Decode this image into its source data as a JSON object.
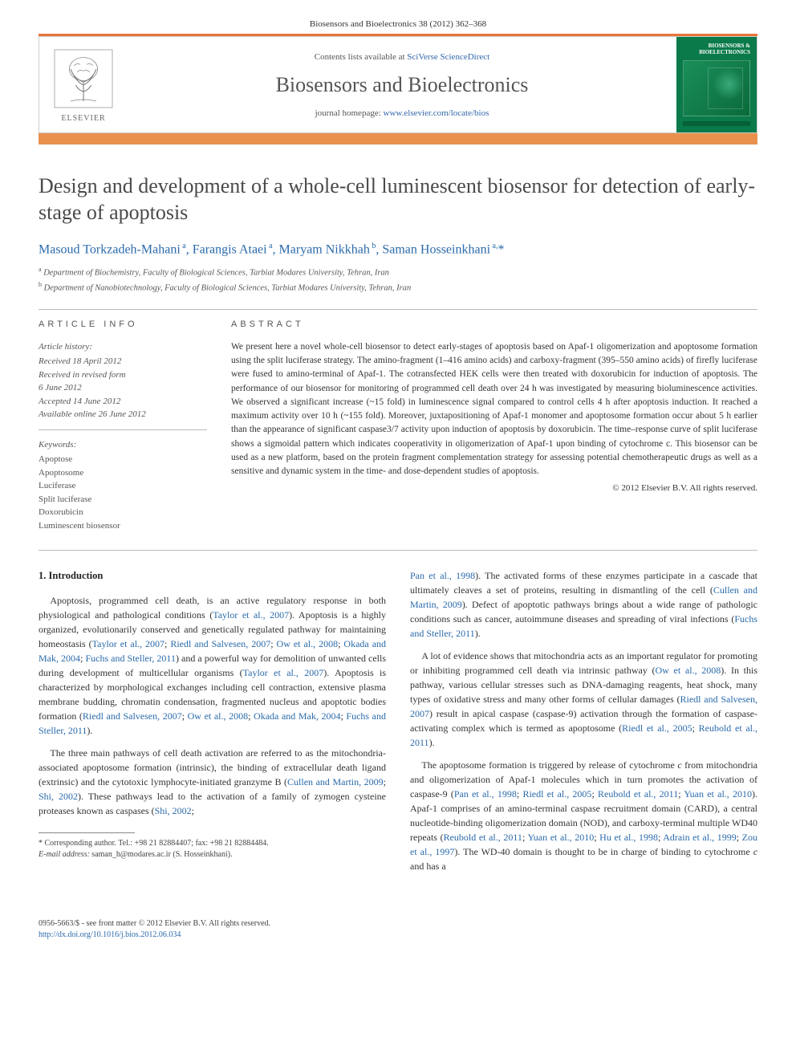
{
  "page_header": "Biosensors and Bioelectronics 38 (2012) 362–368",
  "banner": {
    "contents_prefix": "Contents lists available at ",
    "contents_link": "SciVerse ScienceDirect",
    "journal": "Biosensors and Bioelectronics",
    "homepage_prefix": "journal homepage: ",
    "homepage_link": "www.elsevier.com/locate/bios",
    "publisher": "ELSEVIER",
    "cover_title": "BIOSENSORS & BIOELECTRONICS"
  },
  "title": "Design and development of a whole-cell luminescent biosensor for detection of early-stage of apoptosis",
  "authors_html": "Masoud Torkzadeh-Mahani<sup> a</sup>, Farangis Ataei<sup> a</sup>, Maryam Nikkhah<sup> b</sup>, Saman Hosseinkhani<sup> a,</sup><span class='star'>*</span>",
  "affiliations": [
    {
      "sup": "a",
      "text": "Department of Biochemistry, Faculty of Biological Sciences, Tarbiat Modares University, Tehran, Iran"
    },
    {
      "sup": "b",
      "text": "Department of Nanobiotechnology, Faculty of Biological Sciences, Tarbiat Modares University, Tehran, Iran"
    }
  ],
  "info": {
    "heading": "ARTICLE INFO",
    "history_label": "Article history:",
    "history": [
      "Received 18 April 2012",
      "Received in revised form",
      "6 June 2012",
      "Accepted 14 June 2012",
      "Available online 26 June 2012"
    ],
    "keywords_label": "Keywords:",
    "keywords": [
      "Apoptose",
      "Apoptosome",
      "Luciferase",
      "Split luciferase",
      "Doxorubicin",
      "Luminescent biosensor"
    ]
  },
  "abstract": {
    "heading": "ABSTRACT",
    "text": "We present here a novel whole-cell biosensor to detect early-stages of apoptosis based on Apaf-1 oligomerization and apoptosome formation using the split luciferase strategy. The amino-fragment (1–416 amino acids) and carboxy-fragment (395–550 amino acids) of firefly luciferase were fused to amino-terminal of Apaf-1. The cotransfected HEK cells were then treated with doxorubicin for induction of apoptosis. The performance of our biosensor for monitoring of programmed cell death over 24 h was investigated by measuring bioluminescence activities. We observed a significant increase (~15 fold) in luminescence signal compared to control cells 4 h after apoptosis induction. It reached a maximum activity over 10 h (~155 fold). Moreover, juxtapositioning of Apaf-1 monomer and apoptosome formation occur about 5 h earlier than the appearance of significant caspase3/7 activity upon induction of apoptosis by doxorubicin. The time–response curve of split luciferase shows a sigmoidal pattern which indicates cooperativity in oligomerization of Apaf-1 upon binding of cytochrome c. This biosensor can be used as a new platform, based on the protein fragment complementation strategy for assessing potential chemotherapeutic drugs as well as a sensitive and dynamic system in the time- and dose-dependent studies of apoptosis.",
    "copyright": "© 2012 Elsevier B.V. All rights reserved."
  },
  "body": {
    "section_heading": "1.  Introduction",
    "left": [
      "Apoptosis, programmed cell death, is an active regulatory response in both physiological and pathological conditions (<span class='ref'>Taylor et al., 2007</span>). Apoptosis is a highly organized, evolutionarily conserved and genetically regulated pathway for maintaining homeostasis (<span class='ref'>Taylor et al., 2007</span>; <span class='ref'>Riedl and Salvesen, 2007</span>; <span class='ref'>Ow et al., 2008</span>; <span class='ref'>Okada and Mak, 2004</span>; <span class='ref'>Fuchs and Steller, 2011</span>) and a powerful way for demolition of unwanted cells during development of multicellular organisms (<span class='ref'>Taylor et al., 2007</span>). Apoptosis is characterized by morphological exchanges including cell contraction, extensive plasma membrane budding, chromatin condensation, fragmented nucleus and apoptotic bodies formation (<span class='ref'>Riedl and Salvesen, 2007</span>; <span class='ref'>Ow et al., 2008</span>; <span class='ref'>Okada and Mak, 2004</span>; <span class='ref'>Fuchs and Steller, 2011</span>).",
      "The three main pathways of cell death activation are referred to as the mitochondria-associated apoptosome formation (intrinsic), the binding of extracellular death ligand (extrinsic) and the cytotoxic lymphocyte-initiated granzyme B (<span class='ref'>Cullen and Martin, 2009</span>; <span class='ref'>Shi, 2002</span>). These pathways lead to the activation of a family of zymogen cysteine proteases known as caspases (<span class='ref'>Shi, 2002</span>;"
    ],
    "right": [
      "<span class='ref'>Pan et al., 1998</span>). The activated forms of these enzymes participate in a cascade that ultimately cleaves a set of proteins, resulting in dismantling of the cell (<span class='ref'>Cullen and Martin, 2009</span>). Defect of apoptotic pathways brings about a wide range of pathologic conditions such as cancer, autoimmune diseases and spreading of viral infections (<span class='ref'>Fuchs and Steller, 2011</span>).",
      "A lot of evidence shows that mitochondria acts as an important regulator for promoting or inhibiting programmed cell death via intrinsic pathway (<span class='ref'>Ow et al., 2008</span>). In this pathway, various cellular stresses such as DNA-damaging reagents, heat shock, many types of oxidative stress and many other forms of cellular damages (<span class='ref'>Riedl and Salvesen, 2007</span>) result in apical caspase (caspase-9) activation through the formation of caspase-activating complex which is termed as apoptosome (<span class='ref'>Riedl et al., 2005</span>; <span class='ref'>Reubold et al., 2011</span>).",
      "The apoptosome formation is triggered by release of cytochrome <em class='species'>c</em> from mitochondria and oligomerization of Apaf-1 molecules which in turn promotes the activation of caspase-9 (<span class='ref'>Pan et al., 1998</span>; <span class='ref'>Riedl et al., 2005</span>; <span class='ref'>Reubold et al., 2011</span>; <span class='ref'>Yuan et al., 2010</span>). Apaf-1 comprises of an amino-terminal caspase recruitment domain (CARD), a central nucleotide-binding oligomerization domain (NOD), and carboxy-terminal multiple WD40 repeats (<span class='ref'>Reubold et al., 2011</span>; <span class='ref'>Yuan et al., 2010</span>; <span class='ref'>Hu et al., 1998</span>; <span class='ref'>Adrain et al., 1999</span>; <span class='ref'>Zou et al., 1997</span>). The WD-40 domain is thought to be in charge of binding to cytochrome <em class='species'>c</em> and has a"
    ]
  },
  "footnote": {
    "corr": "* Corresponding author. Tel.: +98 21 82884407; fax: +98 21 82884484.",
    "email_label": "E-mail address:",
    "email": "saman_h@modares.ac.ir (S. Hosseinkhani)."
  },
  "footer": {
    "line1": "0956-5663/$ - see front matter © 2012 Elsevier B.V. All rights reserved.",
    "doi": "http://dx.doi.org/10.1016/j.bios.2012.06.034"
  },
  "colors": {
    "orange_top": "#e8914e",
    "orange_thin": "#e8914e",
    "link": "#2a6aaa",
    "ref": "#2a6aaa",
    "cover_green": "#0a7a4a"
  }
}
